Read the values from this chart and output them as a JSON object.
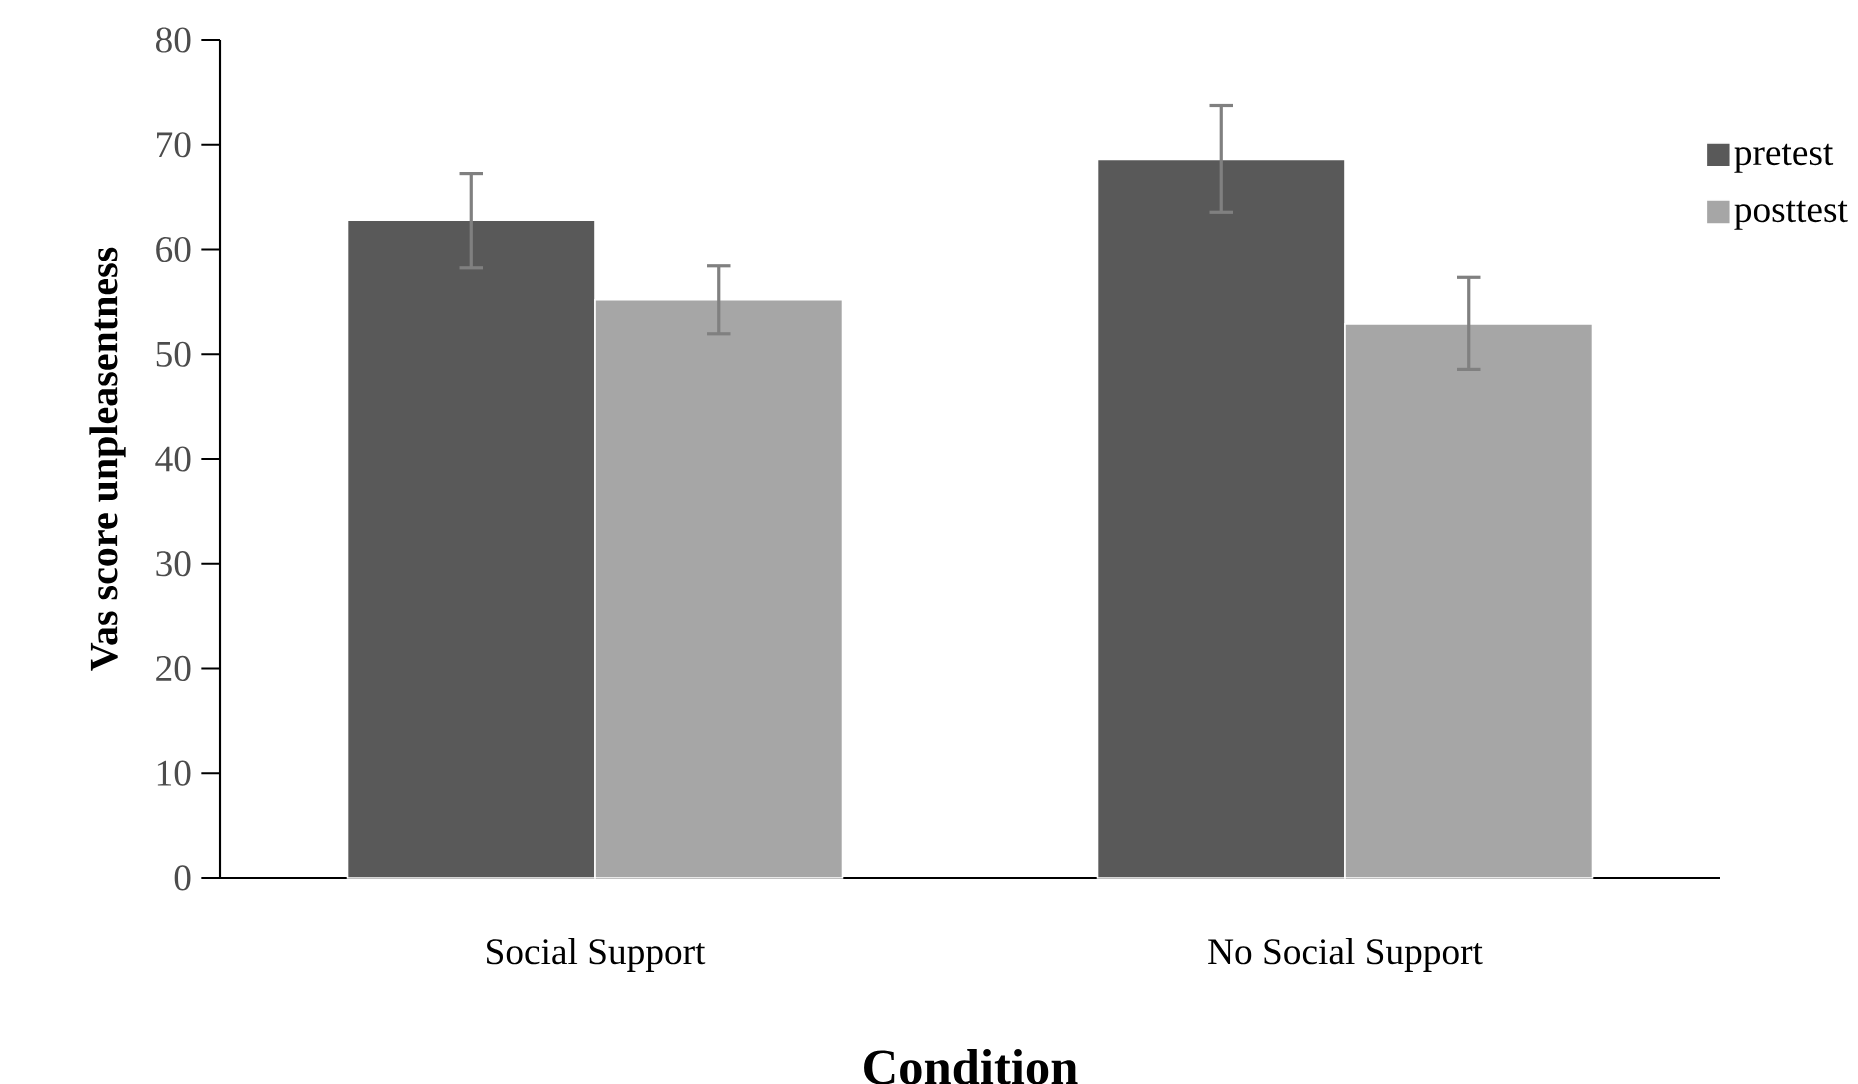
{
  "chart_data": {
    "type": "bar",
    "xlabel": "Condition",
    "ylabel": "Vas score unpleasentness",
    "categories": [
      "Social Support",
      "No Social Support"
    ],
    "series": [
      {
        "name": "pretest",
        "color": "#595959",
        "values": [
          62.8,
          68.6
        ],
        "errors": [
          [
            58.1,
            67.4
          ],
          [
            63.4,
            73.9
          ]
        ]
      },
      {
        "name": "posttest",
        "color": "#a6a6a6",
        "values": [
          55.2,
          52.9
        ],
        "errors": [
          [
            51.8,
            58.6
          ],
          [
            48.4,
            57.5
          ]
        ]
      }
    ],
    "ylim": [
      0,
      80
    ],
    "yticks": [
      0,
      10,
      20,
      30,
      40,
      50,
      60,
      70,
      80
    ],
    "grid": false,
    "legend": "right"
  }
}
